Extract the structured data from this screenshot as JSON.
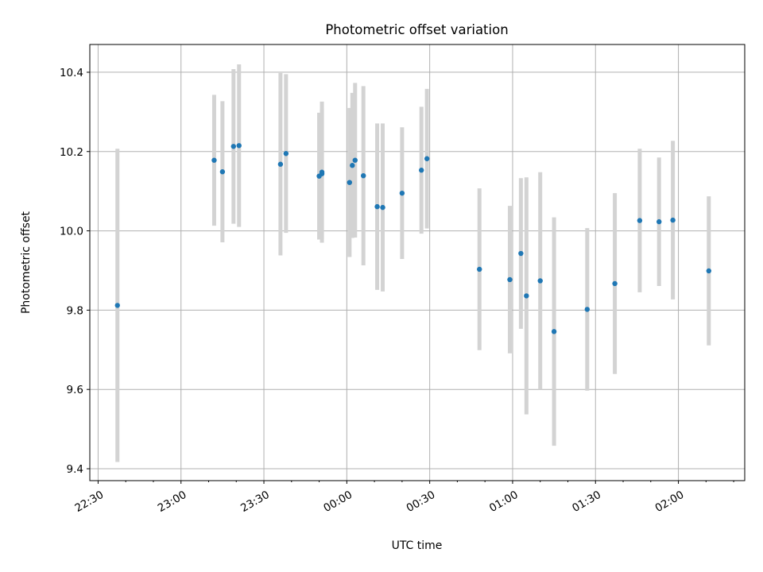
{
  "chart_data": {
    "type": "scatter",
    "title": "Photometric offset variation",
    "xlabel": "UTC time",
    "ylabel": "Photometric offset",
    "x_unit": "UTC time of night (22:30 to 02:24)",
    "xlim": [
      "22:27",
      "02:24"
    ],
    "ylim": [
      9.37,
      10.47
    ],
    "xticks": [
      "22:30",
      "23:00",
      "23:30",
      "00:00",
      "00:30",
      "01:00",
      "01:30",
      "02:00"
    ],
    "yticks": [
      9.4,
      9.6,
      9.8,
      10.0,
      10.2,
      10.4
    ],
    "ytick_labels": [
      "9.4",
      "9.6",
      "9.8",
      "10.0",
      "10.2",
      "10.4"
    ],
    "grid": true,
    "colors": {
      "point": "#1f77b4",
      "errorbar": "#d3d3d3",
      "grid": "#b0b0b0"
    },
    "points": [
      {
        "x": "22:37",
        "y": 9.812,
        "err": 0.395
      },
      {
        "x": "23:12",
        "y": 10.178,
        "err": 0.165
      },
      {
        "x": "23:15",
        "y": 10.149,
        "err": 0.178
      },
      {
        "x": "23:19",
        "y": 10.213,
        "err": 0.195
      },
      {
        "x": "23:21",
        "y": 10.215,
        "err": 0.205
      },
      {
        "x": "23:36",
        "y": 10.168,
        "err": 0.23
      },
      {
        "x": "23:38",
        "y": 10.195,
        "err": 0.2
      },
      {
        "x": "23:50",
        "y": 10.138,
        "err": 0.16
      },
      {
        "x": "23:51",
        "y": 10.144,
        "err": 0.165
      },
      {
        "x": "23:51",
        "y": 10.148,
        "err": 0.178
      },
      {
        "x": "00:01",
        "y": 10.122,
        "err": 0.188
      },
      {
        "x": "00:02",
        "y": 10.165,
        "err": 0.183
      },
      {
        "x": "00:03",
        "y": 10.178,
        "err": 0.195
      },
      {
        "x": "00:06",
        "y": 10.139,
        "err": 0.226
      },
      {
        "x": "00:11",
        "y": 10.061,
        "err": 0.21
      },
      {
        "x": "00:13",
        "y": 10.059,
        "err": 0.212
      },
      {
        "x": "00:20",
        "y": 10.095,
        "err": 0.166
      },
      {
        "x": "00:27",
        "y": 10.153,
        "err": 0.16
      },
      {
        "x": "00:29",
        "y": 10.182,
        "err": 0.176
      },
      {
        "x": "00:48",
        "y": 9.903,
        "err": 0.204
      },
      {
        "x": "00:59",
        "y": 9.877,
        "err": 0.186
      },
      {
        "x": "01:03",
        "y": 9.943,
        "err": 0.19
      },
      {
        "x": "01:05",
        "y": 9.836,
        "err": 0.299
      },
      {
        "x": "01:10",
        "y": 9.874,
        "err": 0.274
      },
      {
        "x": "01:15",
        "y": 9.746,
        "err": 0.288
      },
      {
        "x": "01:27",
        "y": 9.802,
        "err": 0.205
      },
      {
        "x": "01:37",
        "y": 9.867,
        "err": 0.228
      },
      {
        "x": "01:46",
        "y": 10.026,
        "err": 0.181
      },
      {
        "x": "01:53",
        "y": 10.023,
        "err": 0.162
      },
      {
        "x": "01:58",
        "y": 10.027,
        "err": 0.2
      },
      {
        "x": "02:11",
        "y": 9.899,
        "err": 0.188
      }
    ]
  }
}
